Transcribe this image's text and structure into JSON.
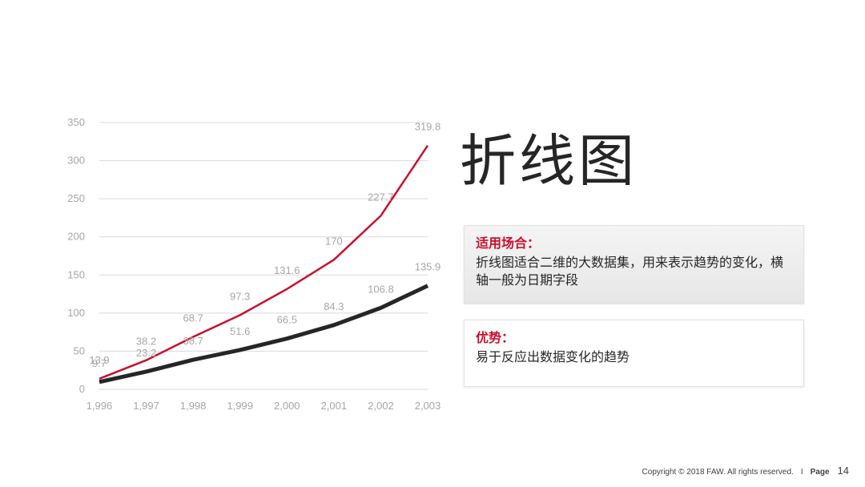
{
  "slide": {
    "title": "折线图",
    "usage_heading": "适用场合：",
    "usage_text": "折线图适合二维的大数据集，用来表示趋势的变化，横轴一般为日期字段",
    "advantage_heading": "优势：",
    "advantage_text": "易于反应出数据变化的趋势"
  },
  "footer": {
    "copyright": "Copyright © 2018 FAW. All rights reserved.",
    "separator": "I",
    "page_label": "Page",
    "page_number": "14"
  },
  "colors": {
    "red_series": "#c8102e",
    "dark_series": "#262626",
    "accent": "#c8102e"
  },
  "chart_data": {
    "type": "line",
    "title": "",
    "xlabel": "",
    "ylabel": "",
    "x": [
      "1,996",
      "1,997",
      "1,998",
      "1,999",
      "2,000",
      "2,001",
      "2,002",
      "2,003"
    ],
    "ylim": [
      0,
      350
    ],
    "yticks": [
      "0",
      "50",
      "100",
      "150",
      "200",
      "250",
      "300",
      "350"
    ],
    "grid": true,
    "legend": "none",
    "series": [
      {
        "color": "#c8102e",
        "values": [
          13.9,
          38.2,
          68.7,
          97.3,
          131.6,
          170,
          227.7,
          319.8
        ],
        "labels": [
          "13.9",
          "38.2",
          "68.7",
          "97.3",
          "131.6",
          "170",
          "227.7",
          "319.8"
        ]
      },
      {
        "color": "#262626",
        "values": [
          9.7,
          23.2,
          38.7,
          51.6,
          66.5,
          84.3,
          106.8,
          135.9
        ],
        "labels": [
          "9.7",
          "23.2",
          "38.7",
          "51.6",
          "66.5",
          "84.3",
          "106.8",
          "135.9"
        ]
      }
    ]
  }
}
